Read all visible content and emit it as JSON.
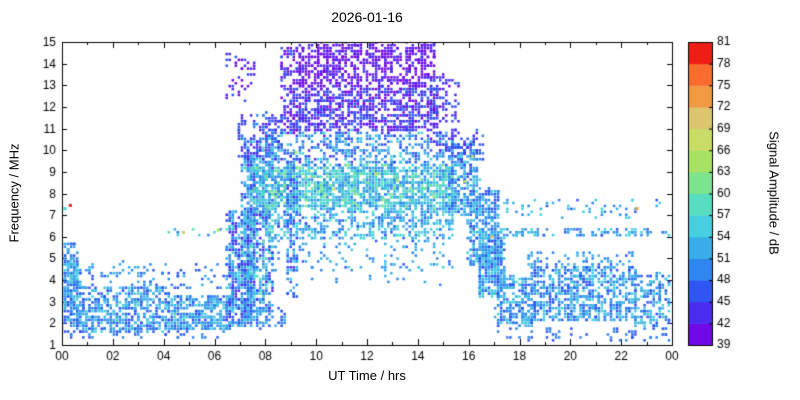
{
  "chart_data": {
    "type": "heatmap",
    "title": "2026-01-16",
    "xlabel": "UT Time / hrs",
    "ylabel": "Frequency / MHz",
    "xlim": [
      0,
      24
    ],
    "ylim": [
      1,
      15
    ],
    "x_ticks": {
      "values": [
        0,
        2,
        4,
        6,
        8,
        10,
        12,
        14,
        16,
        18,
        20,
        22,
        24
      ],
      "labels": [
        "00",
        "02",
        "04",
        "06",
        "08",
        "10",
        "12",
        "14",
        "16",
        "18",
        "20",
        "22",
        "00"
      ],
      "minor": [
        1,
        3,
        5,
        7,
        9,
        11,
        13,
        15,
        17,
        19,
        21,
        23
      ]
    },
    "y_ticks": [
      1,
      2,
      3,
      4,
      5,
      6,
      7,
      8,
      9,
      10,
      11,
      12,
      13,
      14,
      15
    ],
    "colorbar": {
      "label": "Signal Amplitude / dB",
      "min": 39,
      "max": 81,
      "ticks": [
        39,
        42,
        45,
        48,
        51,
        54,
        57,
        60,
        63,
        66,
        69,
        72,
        75,
        78,
        81
      ],
      "colors": [
        "#7008e8",
        "#4a2cf0",
        "#2f55f4",
        "#2f86f0",
        "#38ade8",
        "#46cfe0",
        "#57ddc0",
        "#7ce48c",
        "#a6e365",
        "#c8dc66",
        "#ddc46e",
        "#f29a43",
        "#fa6b2e",
        "#ee1e15"
      ]
    },
    "points": {
      "seed": 7,
      "quant_t": 0.12,
      "quant_f": 0.135,
      "dot_w": 2.5,
      "dot_h": 2.5,
      "clusters": [
        {
          "t": [
            0,
            0.7
          ],
          "f": [
            1.9,
            4.9
          ],
          "n": 260,
          "amp": [
            45,
            57
          ]
        },
        {
          "t": [
            0,
            0.6
          ],
          "f": [
            4.9,
            5.7
          ],
          "n": 30,
          "amp": [
            45,
            54
          ]
        },
        {
          "t": [
            0.6,
            4.3
          ],
          "f": [
            1.6,
            3.7
          ],
          "n": 480,
          "amp": [
            45,
            57
          ]
        },
        {
          "t": [
            1.0,
            6.6
          ],
          "f": [
            3.6,
            4.8
          ],
          "n": 90,
          "amp": [
            45,
            54
          ]
        },
        {
          "t": [
            4.2,
            6.7
          ],
          "f": [
            1.7,
            3.3
          ],
          "n": 320,
          "amp": [
            45,
            57
          ]
        },
        {
          "t": [
            0,
            6.8
          ],
          "f": [
            1.3,
            1.8
          ],
          "n": 50,
          "amp": [
            45,
            51
          ]
        },
        {
          "t": [
            4.2,
            6.6
          ],
          "f": [
            6.05,
            6.4
          ],
          "n": 12,
          "amp": [
            48,
            60
          ]
        },
        {
          "t": [
            6.5,
            7.4
          ],
          "f": [
            1.9,
            7.2
          ],
          "n": 380,
          "amp": [
            42,
            57
          ]
        },
        {
          "t": [
            7.1,
            7.6
          ],
          "f": [
            2.2,
            9.8
          ],
          "n": 300,
          "amp": [
            42,
            57
          ]
        },
        {
          "t": [
            7.3,
            8.3
          ],
          "f": [
            2.6,
            10.6
          ],
          "n": 500,
          "amp": [
            42,
            60
          ]
        },
        {
          "t": [
            6.9,
            7.7
          ],
          "f": [
            9.5,
            11.6
          ],
          "n": 60,
          "amp": [
            42,
            51
          ]
        },
        {
          "t": [
            6.4,
            7.6
          ],
          "f": [
            12.2,
            14.5
          ],
          "n": 40,
          "amp": [
            39,
            47
          ]
        },
        {
          "t": [
            6.8,
            8.8
          ],
          "f": [
            1.8,
            2.8
          ],
          "n": 70,
          "amp": [
            45,
            54
          ]
        },
        {
          "t": [
            7.6,
            15.4
          ],
          "f": [
            7.3,
            9.3
          ],
          "n": 1500,
          "amp": [
            48,
            62
          ]
        },
        {
          "t": [
            7.9,
            15.4
          ],
          "f": [
            5.9,
            7.3
          ],
          "n": 450,
          "amp": [
            47,
            58
          ]
        },
        {
          "t": [
            8.0,
            15.4
          ],
          "f": [
            4.4,
            5.9
          ],
          "n": 110,
          "amp": [
            47,
            56
          ]
        },
        {
          "t": [
            8.0,
            15.2
          ],
          "f": [
            9.3,
            10.9
          ],
          "n": 420,
          "amp": [
            44,
            56
          ]
        },
        {
          "t": [
            7.8,
            8.8
          ],
          "f": [
            10.3,
            11.7
          ],
          "n": 70,
          "amp": [
            42,
            51
          ]
        },
        {
          "t": [
            9.5,
            15.0
          ],
          "f": [
            3.8,
            4.3
          ],
          "n": 12,
          "amp": [
            48,
            54
          ]
        },
        {
          "t": [
            8.85,
            9.3
          ],
          "f": [
            3.2,
            9.5
          ],
          "n": 120,
          "amp": [
            44,
            56
          ]
        },
        {
          "t": [
            9.3,
            14.7
          ],
          "f": [
            12.9,
            15.0
          ],
          "n": 650,
          "amp": [
            39,
            44
          ]
        },
        {
          "t": [
            9.0,
            14.8
          ],
          "f": [
            10.9,
            12.9
          ],
          "n": 750,
          "amp": [
            40,
            48
          ]
        },
        {
          "t": [
            8.6,
            9.4
          ],
          "f": [
            10.8,
            14.8
          ],
          "n": 110,
          "amp": [
            39,
            47
          ]
        },
        {
          "t": [
            14.5,
            15.6
          ],
          "f": [
            10.0,
            13.5
          ],
          "n": 90,
          "amp": [
            40,
            48
          ]
        },
        {
          "t": [
            15.2,
            16.4
          ],
          "f": [
            7.0,
            10.4
          ],
          "n": 260,
          "amp": [
            45,
            57
          ]
        },
        {
          "t": [
            15.2,
            16.6
          ],
          "f": [
            9.0,
            11.0
          ],
          "n": 60,
          "amp": [
            42,
            50
          ]
        },
        {
          "t": [
            16.0,
            17.2
          ],
          "f": [
            4.6,
            8.2
          ],
          "n": 300,
          "amp": [
            45,
            57
          ]
        },
        {
          "t": [
            16.4,
            17.4
          ],
          "f": [
            3.2,
            6.0
          ],
          "n": 260,
          "amp": [
            45,
            57
          ]
        },
        {
          "t": [
            16.3,
            23.9
          ],
          "f": [
            6.05,
            6.35
          ],
          "n": 120,
          "amp": [
            47,
            57
          ]
        },
        {
          "t": [
            17.4,
            23.6
          ],
          "f": [
            6.9,
            7.7
          ],
          "n": 55,
          "amp": [
            47,
            57
          ]
        },
        {
          "t": [
            17.0,
            18.6
          ],
          "f": [
            1.9,
            4.2
          ],
          "n": 260,
          "amp": [
            45,
            57
          ]
        },
        {
          "t": [
            18.5,
            22.6
          ],
          "f": [
            2.1,
            4.6
          ],
          "n": 650,
          "amp": [
            45,
            57
          ]
        },
        {
          "t": [
            18.3,
            22.5
          ],
          "f": [
            4.5,
            5.3
          ],
          "n": 70,
          "amp": [
            45,
            54
          ]
        },
        {
          "t": [
            22.5,
            24.0
          ],
          "f": [
            1.8,
            4.3
          ],
          "n": 170,
          "amp": [
            45,
            57
          ]
        },
        {
          "t": [
            17.0,
            24.0
          ],
          "f": [
            1.2,
            1.8
          ],
          "n": 55,
          "amp": [
            45,
            51
          ]
        }
      ],
      "outliers": [
        {
          "t": 0.33,
          "f": 7.45,
          "amp": 79
        },
        {
          "t": 0.12,
          "f": 7.3,
          "amp": 55
        },
        {
          "t": 22.62,
          "f": 7.3,
          "amp": 74
        },
        {
          "t": 4.78,
          "f": 6.2,
          "amp": 70
        },
        {
          "t": 6.15,
          "f": 6.3,
          "amp": 63
        },
        {
          "t": 16.15,
          "f": 9.7,
          "amp": 68
        },
        {
          "t": 15.85,
          "f": 8.55,
          "amp": 65
        },
        {
          "t": 12.35,
          "f": 8.9,
          "amp": 66
        },
        {
          "t": 10.7,
          "f": 8.2,
          "amp": 67
        },
        {
          "t": 13.2,
          "f": 8.6,
          "amp": 64
        },
        {
          "t": 9.2,
          "f": 9.9,
          "amp": 64
        },
        {
          "t": 16.9,
          "f": 6.0,
          "amp": 69
        }
      ]
    }
  }
}
